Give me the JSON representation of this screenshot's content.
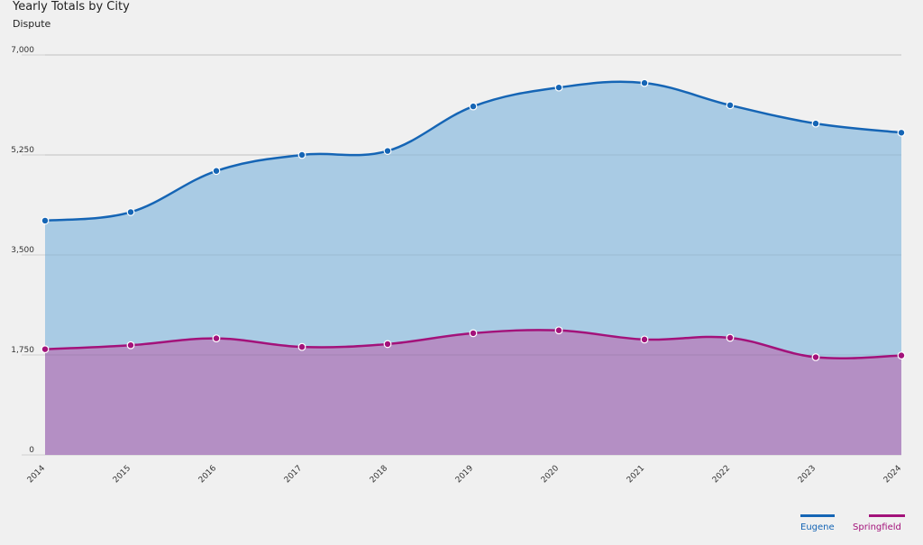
{
  "chart_data": {
    "type": "area",
    "title": "Yearly Totals by City",
    "subtitle": "Dispute",
    "xlabel": "",
    "ylabel": "",
    "x": [
      "2014",
      "2015",
      "2016",
      "2017",
      "2018",
      "2019",
      "2020",
      "2021",
      "2022",
      "2023",
      "2024"
    ],
    "ylim": [
      0,
      7000
    ],
    "yticks": [
      0,
      1750,
      3500,
      5250,
      7000
    ],
    "ytick_labels": [
      "0",
      "1,750",
      "3,500",
      "5,250",
      "7,000"
    ],
    "grid": true,
    "legend_position": "bottom-right",
    "series": [
      {
        "name": "Eugene",
        "color": "#1565b5",
        "fill": "#a9cbe4",
        "values": [
          4100,
          4250,
          4970,
          5250,
          5320,
          6100,
          6430,
          6510,
          6120,
          5800,
          5640
        ]
      },
      {
        "name": "Springfield",
        "color": "#a3127a",
        "fill": "#b48fc4",
        "values": [
          1850,
          1920,
          2040,
          1890,
          1940,
          2130,
          2180,
          2020,
          2050,
          1710,
          1740
        ]
      }
    ]
  }
}
